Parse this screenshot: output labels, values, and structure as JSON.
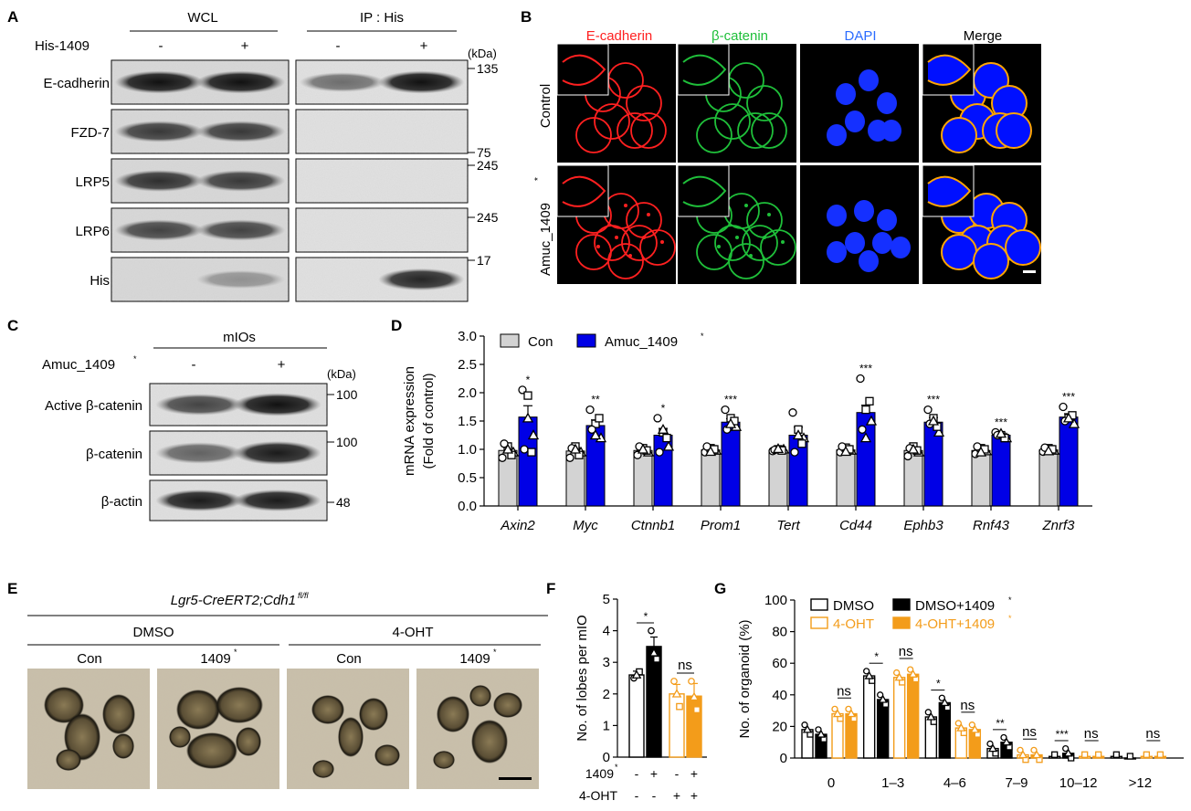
{
  "panels": {
    "A": "A",
    "B": "B",
    "C": "C",
    "D": "D",
    "E": "E",
    "F": "F",
    "G": "G"
  },
  "colors": {
    "con": "#d3d3d3",
    "amuc": "#0000e6",
    "orange": "#f39c1a",
    "black": "#000000",
    "red": "#ff2020",
    "green": "#1fbf3a",
    "blue": "#2b6cff"
  },
  "A": {
    "wcl": "WCL",
    "ip": "IP : His",
    "his_label": "His-1409",
    "minus": "-",
    "plus": "+",
    "kda": "(kDa)",
    "rows": [
      "E-cadherin",
      "FZD-7",
      "LRP5",
      "LRP6",
      "His"
    ],
    "markers": [
      "135",
      "75",
      "245",
      "245",
      "17"
    ]
  },
  "B": {
    "cols": [
      "E-cadherin",
      "β-catenin",
      "DAPI",
      "Merge"
    ],
    "rows": [
      "Control",
      "Amuc_1409",
      "*"
    ]
  },
  "C": {
    "group": "mIOs",
    "treat": "Amuc_1409",
    "star": "*",
    "minus": "-",
    "plus": "+",
    "kda": "(kDa)",
    "rows": [
      "Active β-catenin",
      "β-catenin",
      "β-actin"
    ],
    "markers": [
      "100",
      "100",
      "48"
    ]
  },
  "E": {
    "title": "Lgr5-CreERT2;Cdh1",
    "title_sup": "fl/fl",
    "groups": [
      "DMSO",
      "4-OHT"
    ],
    "cols": [
      "Con",
      "1409",
      "Con",
      "1409"
    ],
    "star": "*"
  },
  "chart_data": [
    {
      "panel": "D",
      "type": "bar",
      "ylabel": "mRNA expression",
      "ylabel2": "(Fold of control)",
      "ylim": [
        0,
        3.0
      ],
      "yticks": [
        "0.0",
        "0.5",
        "1.0",
        "1.5",
        "2.0",
        "2.5",
        "3.0"
      ],
      "categories": [
        "Axin2",
        "Myc",
        "Ctnnb1",
        "Prom1",
        "Tert",
        "Cd44",
        "Ephb3",
        "Rnf43",
        "Znrf3"
      ],
      "series": [
        {
          "name": "Con",
          "values": [
            0.98,
            0.97,
            0.98,
            0.99,
            0.98,
            0.99,
            0.98,
            0.98,
            0.99
          ],
          "err": [
            0.06,
            0.06,
            0.04,
            0.03,
            0.02,
            0.03,
            0.05,
            0.04,
            0.03
          ]
        },
        {
          "name": "Amuc_1409",
          "sup": "*",
          "values": [
            1.57,
            1.42,
            1.25,
            1.48,
            1.25,
            1.65,
            1.48,
            1.25,
            1.57
          ],
          "err": [
            0.2,
            0.1,
            0.12,
            0.06,
            0.14,
            0.13,
            0.08,
            0.04,
            0.06
          ],
          "sig": [
            "*",
            "**",
            "*",
            "***",
            "",
            "***",
            "***",
            "***",
            "***"
          ]
        }
      ],
      "points_con": [
        [
          0.85,
          1.05,
          0.95,
          1.1,
          0.9,
          1.0
        ],
        [
          0.85,
          1.05,
          0.95,
          1.02,
          0.9,
          1.0
        ],
        [
          0.9,
          1.02,
          0.95,
          1.05,
          0.98,
          1.0
        ],
        [
          0.95,
          1.02,
          0.98,
          1.05,
          1.0,
          0.96
        ],
        [
          0.97,
          1.0,
          1.0,
          0.99,
          0.98,
          1.01
        ],
        [
          0.95,
          1.03,
          0.98,
          1.05,
          1.0,
          0.96
        ],
        [
          0.88,
          1.05,
          0.95,
          1.02,
          0.98,
          1.0
        ],
        [
          0.92,
          1.02,
          0.97,
          1.05,
          1.0,
          0.95
        ],
        [
          0.96,
          1.02,
          0.98,
          1.03,
          1.0,
          0.97
        ]
      ],
      "points_amuc": [
        [
          2.05,
          1.95,
          1.25,
          1.0,
          0.95,
          1.55
        ],
        [
          1.7,
          1.45,
          1.2,
          1.35,
          1.55,
          1.25
        ],
        [
          1.55,
          1.3,
          1.05,
          0.95,
          1.2,
          1.35
        ],
        [
          1.7,
          1.55,
          1.4,
          1.35,
          1.5,
          1.45
        ],
        [
          1.65,
          1.35,
          1.2,
          0.95,
          1.1,
          1.25
        ],
        [
          2.25,
          1.7,
          1.5,
          1.35,
          1.85,
          1.2
        ],
        [
          1.7,
          1.55,
          1.3,
          1.45,
          1.4,
          1.5
        ],
        [
          1.3,
          1.25,
          1.2,
          1.25,
          1.2,
          1.28
        ],
        [
          1.75,
          1.55,
          1.45,
          1.5,
          1.6,
          1.55
        ]
      ],
      "legend": [
        "Con",
        "Amuc_1409*"
      ]
    },
    {
      "panel": "F",
      "type": "bar",
      "ylabel": "No. of lobes per mIO",
      "ylim": [
        0,
        5
      ],
      "yticks": [
        "0",
        "1",
        "2",
        "3",
        "4",
        "5"
      ],
      "values": [
        2.6,
        3.5,
        2.0,
        1.93
      ],
      "err": [
        0.12,
        0.3,
        0.3,
        0.4
      ],
      "points": [
        [
          2.5,
          2.7,
          2.6
        ],
        [
          4.0,
          3.1,
          3.3
        ],
        [
          2.4,
          1.6,
          2.0
        ],
        [
          2.4,
          1.5,
          1.9
        ]
      ],
      "row1_label": "1409",
      "row1_sup": "*",
      "row1": [
        "-",
        "+",
        "-",
        "+"
      ],
      "row2_label": "4-OHT",
      "row2": [
        "-",
        "-",
        "+",
        "+"
      ],
      "sig": [
        "*",
        "ns"
      ]
    },
    {
      "panel": "G",
      "type": "bar",
      "ylabel": "No. of organoid (%)",
      "ylim": [
        0,
        100
      ],
      "yticks": [
        "0",
        "20",
        "40",
        "60",
        "80",
        "100"
      ],
      "categories": [
        "0",
        "1–3",
        "4–6",
        "7–9",
        "10–12",
        ">12"
      ],
      "series": [
        {
          "name": "DMSO",
          "values": [
            18,
            52,
            26,
            6,
            1,
            1
          ]
        },
        {
          "name": "DMSO+1409",
          "sup": "*",
          "values": [
            15,
            37,
            35,
            10,
            3,
            0
          ]
        },
        {
          "name": "4-OHT",
          "values": [
            28,
            51,
            19,
            2,
            1,
            1
          ]
        },
        {
          "name": "4-OHT+1409",
          "sup": "*",
          "values": [
            28,
            53,
            18,
            2,
            1,
            1
          ]
        }
      ],
      "sig_dmso": [
        "",
        "*",
        "*",
        "**",
        "***",
        ""
      ],
      "sig_oht": [
        "ns",
        "ns",
        "ns",
        "ns",
        "ns",
        "ns"
      ],
      "legend": [
        "DMSO",
        "DMSO+1409*",
        "4-OHT",
        "4-OHT+1409*"
      ]
    }
  ]
}
